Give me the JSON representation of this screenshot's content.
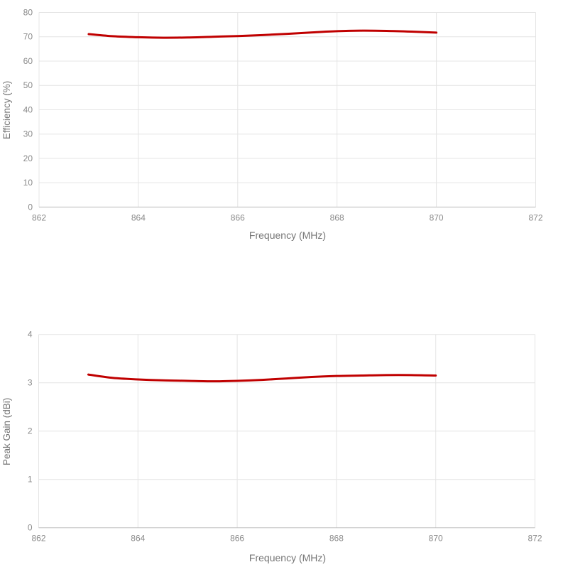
{
  "style": {
    "background": "#ffffff",
    "gridline_color": "#e4e4e4",
    "axis_line_color": "#bdbdbd",
    "tick_label_color": "#8a8a8a",
    "axis_title_color": "#757575",
    "series_color": "#c00000"
  },
  "chart_data": [
    {
      "id": "efficiency-vs-frequency",
      "type": "line",
      "title": "",
      "xlabel": "Frequency (MHz)",
      "ylabel": "Efficiency (%)",
      "xlim": [
        862,
        872
      ],
      "ylim": [
        0,
        80
      ],
      "xticks": [
        862,
        864,
        866,
        868,
        870,
        872
      ],
      "yticks": [
        0,
        10,
        20,
        30,
        40,
        50,
        60,
        70,
        80
      ],
      "grid": true,
      "legend": "none",
      "series": [
        {
          "name": "Efficiency",
          "color": "#c00000",
          "smooth": true,
          "x": [
            863,
            863.5,
            864,
            864.5,
            865,
            865.5,
            866,
            866.5,
            867,
            867.5,
            868,
            868.5,
            869,
            869.5,
            870
          ],
          "values": [
            71.1,
            70.2,
            69.8,
            69.6,
            69.7,
            70.0,
            70.3,
            70.7,
            71.2,
            71.8,
            72.3,
            72.5,
            72.4,
            72.1,
            71.7
          ]
        }
      ]
    },
    {
      "id": "peak-gain-vs-frequency",
      "type": "line",
      "title": "",
      "xlabel": "Frequency (MHz)",
      "ylabel": "Peak Gain (dBi)",
      "xlim": [
        862,
        872
      ],
      "ylim": [
        0,
        4
      ],
      "xticks": [
        862,
        864,
        866,
        868,
        870,
        872
      ],
      "yticks": [
        0,
        1,
        2,
        3,
        4
      ],
      "grid": true,
      "legend": "none",
      "series": [
        {
          "name": "Peak Gain",
          "color": "#c00000",
          "smooth": true,
          "x": [
            863,
            863.5,
            864,
            864.5,
            865,
            865.5,
            866,
            866.5,
            867,
            867.5,
            868,
            868.5,
            869,
            869.5,
            870
          ],
          "values": [
            3.17,
            3.1,
            3.07,
            3.05,
            3.04,
            3.03,
            3.04,
            3.06,
            3.09,
            3.12,
            3.14,
            3.15,
            3.16,
            3.16,
            3.15
          ]
        }
      ]
    }
  ]
}
